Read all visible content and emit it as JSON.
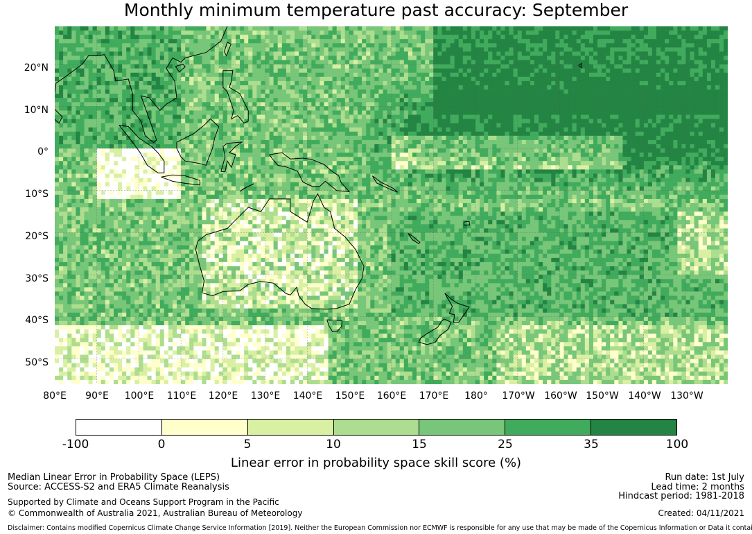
{
  "title": "Monthly minimum temperature past accuracy: September",
  "map": {
    "lat_labels": [
      "20°N",
      "10°N",
      "0°",
      "10°S",
      "20°S",
      "30°S",
      "40°S",
      "50°S"
    ],
    "lon_labels": [
      "80°E",
      "90°E",
      "100°E",
      "110°E",
      "120°E",
      "130°E",
      "140°E",
      "150°E",
      "160°E",
      "170°E",
      "180°",
      "170°W",
      "160°W",
      "150°W",
      "140°W",
      "130°W"
    ],
    "lon_range": [
      80,
      239
    ],
    "lat_range": [
      -55,
      29
    ]
  },
  "colorbar": {
    "ticks": [
      "-100",
      "0",
      "5",
      "10",
      "15",
      "25",
      "35",
      "100"
    ],
    "colors": [
      "#ffffff",
      "#ffffcc",
      "#d9f0a3",
      "#addd8e",
      "#78c679",
      "#41ab5d",
      "#238443"
    ],
    "label": "Linear error in probability space skill score (%)"
  },
  "footer": {
    "line1": "Median Linear Error in Probability Space (LEPS)",
    "line2": "Source: ACCESS-S2 and ERA5 Climate Reanalysis",
    "line3": "Supported by Climate and Oceans Support Program in the Pacific",
    "line4": "© Commonwealth of Australia 2021, Australian Bureau of Meteorology",
    "run_date": "Run date: 1st July",
    "lead_time": "Lead time: 2 months",
    "hindcast": "Hindcast period: 1981-2018",
    "created": "Created: 04/11/2021",
    "disclaimer": "Disclaimer: Contains modified Copernicus Climate Change Service Information [2019]. Neither the European Commission nor ECMWF is responsible for any use that may be made of the Copernicus Information or Data it contains."
  }
}
